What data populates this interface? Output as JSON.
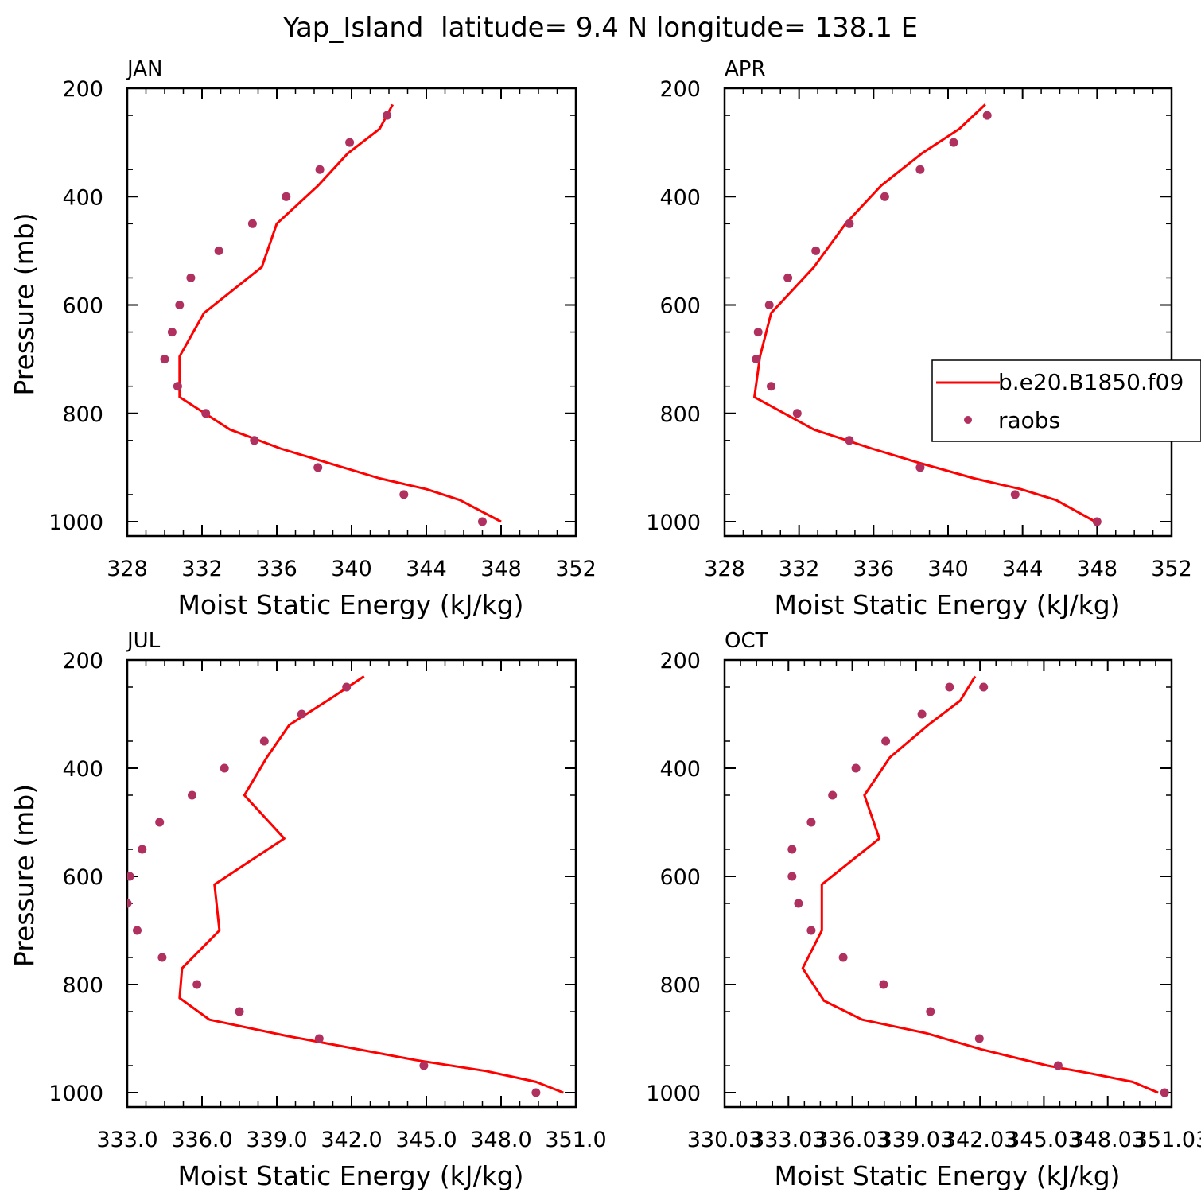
{
  "title": "Yap_Island  latitude= 9.4 N longitude= 138.1 E",
  "colors": {
    "model": "#ff0000",
    "obs": "#b03060",
    "axis": "#000000"
  },
  "legend": {
    "entries": [
      "b.e20.B1850.f09",
      "raobs"
    ],
    "placement": "right-middle of APR panel"
  },
  "chart_data": [
    {
      "type": "line",
      "panel_label": "JAN",
      "xlabel": "Moist Static Energy (kJ/kg)",
      "ylabel": "Pressure (mb)",
      "xlim": [
        328,
        352
      ],
      "ylim": [
        1000,
        200
      ],
      "xticks": [
        328,
        332,
        336,
        340,
        344,
        348,
        352
      ],
      "xtick_labels": [
        "328",
        "332",
        "336",
        "340",
        "344",
        "348",
        "352"
      ],
      "yticks": [
        200,
        400,
        600,
        800,
        1000
      ],
      "ytick_labels": [
        "200",
        "400",
        "600",
        "800",
        "1000"
      ],
      "series": [
        {
          "name": "b.e20.B1850.f09",
          "style": "line",
          "x": [
            348.0,
            345.8,
            344.0,
            341.5,
            338.6,
            336.2,
            333.5,
            330.8,
            330.8,
            332.1,
            335.2,
            336.0,
            338.2,
            339.8,
            341.5,
            342.2
          ],
          "y": [
            1000,
            960,
            940,
            920,
            890,
            865,
            830,
            770,
            695,
            615,
            530,
            450,
            380,
            320,
            275,
            230
          ]
        },
        {
          "name": "raobs",
          "style": "markers",
          "x": [
            347.0,
            342.8,
            338.2,
            334.8,
            332.2,
            330.7,
            330.0,
            330.4,
            330.8,
            331.4,
            332.9,
            334.7,
            336.5,
            338.3,
            339.9,
            341.9
          ],
          "y": [
            1000,
            950,
            900,
            850,
            800,
            750,
            700,
            650,
            600,
            550,
            500,
            450,
            400,
            350,
            300,
            250
          ]
        }
      ]
    },
    {
      "type": "line",
      "panel_label": "APR",
      "xlabel": "Moist Static Energy (kJ/kg)",
      "ylabel": "",
      "xlim": [
        328,
        352
      ],
      "ylim": [
        1000,
        200
      ],
      "xticks": [
        328,
        332,
        336,
        340,
        344,
        348,
        352
      ],
      "xtick_labels": [
        "328",
        "332",
        "336",
        "340",
        "344",
        "348",
        "352"
      ],
      "yticks": [
        200,
        400,
        600,
        800,
        1000
      ],
      "ytick_labels": [
        "200",
        "400",
        "600",
        "800",
        "1000"
      ],
      "series": [
        {
          "name": "b.e20.B1850.f09",
          "style": "line",
          "x": [
            347.9,
            345.8,
            343.9,
            341.4,
            338.3,
            335.9,
            332.8,
            329.6,
            329.9,
            330.5,
            332.8,
            334.5,
            336.4,
            338.6,
            340.6,
            342.0
          ],
          "y": [
            1000,
            960,
            940,
            920,
            890,
            865,
            830,
            770,
            695,
            615,
            530,
            450,
            380,
            320,
            275,
            230
          ]
        },
        {
          "name": "raobs",
          "style": "markers",
          "x": [
            348.0,
            343.6,
            338.5,
            334.7,
            331.9,
            330.5,
            329.7,
            329.8,
            330.4,
            331.4,
            332.9,
            334.7,
            336.6,
            338.5,
            340.3,
            342.1
          ],
          "y": [
            1000,
            950,
            900,
            850,
            800,
            750,
            700,
            650,
            600,
            550,
            500,
            450,
            400,
            350,
            300,
            250
          ]
        }
      ]
    },
    {
      "type": "line",
      "panel_label": "JUL",
      "xlabel": "Moist Static Energy (kJ/kg)",
      "ylabel": "Pressure (mb)",
      "xlim": [
        333,
        351
      ],
      "ylim": [
        1000,
        200
      ],
      "xticks": [
        333,
        336,
        339,
        342,
        345,
        348,
        351
      ],
      "xtick_labels": [
        "333.0",
        "336.0",
        "339.0",
        "342.0",
        "345.0",
        "348.0",
        "351.0"
      ],
      "yticks": [
        200,
        400,
        600,
        800,
        1000
      ],
      "ytick_labels": [
        "200",
        "400",
        "600",
        "800",
        "1000"
      ],
      "series": [
        {
          "name": "b.e20.B1850.f09",
          "style": "line",
          "x": [
            350.5,
            349.4,
            347.4,
            344.6,
            339.4,
            336.3,
            335.1,
            335.2,
            336.7,
            336.5,
            339.3,
            337.7,
            338.6,
            339.5,
            341.2,
            342.5
          ],
          "y": [
            1000,
            980,
            960,
            940,
            895,
            865,
            825,
            770,
            700,
            615,
            530,
            450,
            380,
            320,
            270,
            230
          ]
        },
        {
          "name": "raobs",
          "style": "markers",
          "x": [
            349.4,
            344.9,
            340.7,
            337.5,
            335.8,
            334.4,
            333.4,
            333.0,
            333.1,
            333.6,
            334.3,
            335.6,
            336.9,
            338.5,
            340.0,
            341.8
          ],
          "y": [
            1000,
            950,
            900,
            850,
            800,
            750,
            700,
            650,
            600,
            550,
            500,
            450,
            400,
            350,
            300,
            250
          ]
        }
      ]
    },
    {
      "type": "line",
      "panel_label": "OCT",
      "xlabel": "Moist Static Energy (kJ/kg)",
      "ylabel": "",
      "xlim": [
        330.03,
        351.03
      ],
      "ylim": [
        1000,
        200
      ],
      "xticks": [
        330.03,
        333.03,
        336.03,
        339.03,
        342.03,
        345.03,
        348.03,
        351.03
      ],
      "xtick_labels": [
        "330.03",
        "333.03",
        "336.03",
        "339.03",
        "342.03",
        "345.03",
        "348.03",
        "351.03"
      ],
      "yticks": [
        200,
        400,
        600,
        800,
        1000
      ],
      "ytick_labels": [
        "200",
        "400",
        "600",
        "800",
        "1000"
      ],
      "series": [
        {
          "name": "b.e20.B1850.f09",
          "style": "line",
          "x": [
            350.4,
            349.2,
            347.3,
            345.2,
            342.1,
            339.5,
            336.5,
            334.7,
            333.7,
            334.6,
            334.6,
            337.3,
            336.6,
            337.8,
            339.6,
            341.1,
            341.8
          ],
          "y": [
            1000,
            980,
            965,
            950,
            920,
            890,
            865,
            830,
            770,
            700,
            615,
            530,
            450,
            380,
            320,
            275,
            230
          ]
        },
        {
          "name": "raobs",
          "style": "markers",
          "x": [
            350.7,
            345.7,
            342.0,
            339.7,
            337.5,
            335.6,
            334.1,
            333.5,
            333.2,
            333.2,
            334.1,
            335.1,
            336.2,
            337.6,
            339.3,
            340.6,
            342.2
          ],
          "y": [
            1000,
            950,
            900,
            850,
            800,
            750,
            700,
            650,
            600,
            550,
            500,
            450,
            400,
            350,
            300,
            250,
            250
          ]
        }
      ]
    }
  ]
}
